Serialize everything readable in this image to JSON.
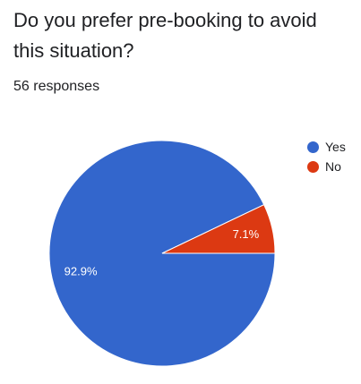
{
  "question": {
    "title": "Do you prefer pre-booking to avoid this situation?",
    "responses_text": "56 responses"
  },
  "chart_data": {
    "type": "pie",
    "categories": [
      "Yes",
      "No"
    ],
    "values": [
      92.9,
      7.1
    ],
    "data_labels": [
      "92.9%",
      "7.1%"
    ],
    "colors": [
      "#3366cc",
      "#dc3912"
    ],
    "legend_position": "right",
    "start_angle_deg": 0,
    "direction": "clockwise-from-3-oclock"
  }
}
